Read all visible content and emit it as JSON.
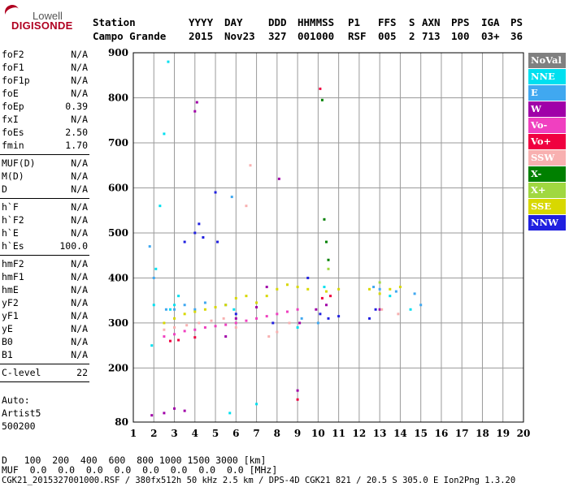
{
  "logo": {
    "top": "Lowell",
    "main": "DIGISONDE"
  },
  "header": {
    "labels": [
      "Station",
      "YYYY",
      "DAY",
      "DDD",
      "HHMMSS",
      "P1",
      "FFS",
      "S",
      "AXN",
      "PPS",
      "IGA",
      "PS"
    ],
    "values": [
      "Campo Grande",
      "2015",
      "Nov23",
      "327",
      "001000",
      "RSF",
      "005",
      "2",
      "713",
      "100",
      "03+",
      "36"
    ]
  },
  "params": {
    "group1": [
      {
        "name": "foF2",
        "value": "N/A"
      },
      {
        "name": "foF1",
        "value": "N/A"
      },
      {
        "name": "foF1p",
        "value": "N/A"
      },
      {
        "name": "foE",
        "value": "N/A"
      },
      {
        "name": "foEp",
        "value": "0.39"
      },
      {
        "name": "fxI",
        "value": "N/A"
      },
      {
        "name": "foEs",
        "value": "2.50"
      },
      {
        "name": "fmin",
        "value": "1.70"
      }
    ],
    "group2": [
      {
        "name": "MUF(D)",
        "value": "N/A"
      },
      {
        "name": "M(D)",
        "value": "N/A"
      },
      {
        "name": "D",
        "value": "N/A"
      }
    ],
    "group3": [
      {
        "name": "h`F",
        "value": "N/A"
      },
      {
        "name": "h`F2",
        "value": "N/A"
      },
      {
        "name": "h`E",
        "value": "N/A"
      },
      {
        "name": "h`Es",
        "value": "100.0"
      }
    ],
    "group4": [
      {
        "name": "hmF2",
        "value": "N/A"
      },
      {
        "name": "hmF1",
        "value": "N/A"
      },
      {
        "name": "hmE",
        "value": "N/A"
      },
      {
        "name": "yF2",
        "value": "N/A"
      },
      {
        "name": "yF1",
        "value": "N/A"
      },
      {
        "name": "yE",
        "value": "N/A"
      },
      {
        "name": "B0",
        "value": "N/A"
      },
      {
        "name": "B1",
        "value": "N/A"
      }
    ],
    "group5": [
      {
        "name": "C-level",
        "value": "22"
      }
    ]
  },
  "auto": {
    "label": "Auto:",
    "program": "Artist5",
    "version": "500200"
  },
  "legend": [
    {
      "label": "NoVal",
      "color": "#808080"
    },
    {
      "label": "NNE",
      "color": "#00e0f0"
    },
    {
      "label": "E",
      "color": "#40a8f0"
    },
    {
      "label": "W",
      "color": "#a000a8"
    },
    {
      "label": "Vo-",
      "color": "#f040c0"
    },
    {
      "label": "Vo+",
      "color": "#f00040"
    },
    {
      "label": "SSW",
      "color": "#f8b0b0"
    },
    {
      "label": "X-",
      "color": "#008000"
    },
    {
      "label": "X+",
      "color": "#a0d840"
    },
    {
      "label": "SSE",
      "color": "#d8d800"
    },
    {
      "label": "NNW",
      "color": "#2020e0"
    }
  ],
  "chart_data": {
    "type": "scatter",
    "title": "",
    "xlabel": "",
    "ylabel": "",
    "xlim": [
      1,
      20
    ],
    "ylim": [
      80,
      900
    ],
    "x_ticks": [
      "1",
      "2",
      "3",
      "4",
      "5",
      "6",
      "7",
      "8",
      "9",
      "10",
      "11",
      "12",
      "13",
      "14",
      "15",
      "16",
      "17",
      "18",
      "19",
      "20"
    ],
    "y_ticks": [
      "80",
      "200",
      "300",
      "400",
      "500",
      "600",
      "700",
      "800",
      "900"
    ],
    "grid": true,
    "legend_placement": "right",
    "series": [
      {
        "name": "NNE",
        "points": [
          [
            1.9,
            250
          ],
          [
            2.0,
            340
          ],
          [
            2.1,
            420
          ],
          [
            2.3,
            560
          ],
          [
            2.5,
            720
          ],
          [
            2.7,
            880
          ],
          [
            2.8,
            330
          ],
          [
            3.0,
            340
          ],
          [
            3.2,
            360
          ],
          [
            5.7,
            100
          ],
          [
            5.9,
            330
          ],
          [
            7.0,
            120
          ],
          [
            9.0,
            290
          ],
          [
            10.3,
            380
          ],
          [
            13.5,
            360
          ],
          [
            14.5,
            330
          ]
        ]
      },
      {
        "name": "E",
        "points": [
          [
            1.8,
            470
          ],
          [
            2.0,
            400
          ],
          [
            2.6,
            330
          ],
          [
            3.0,
            330
          ],
          [
            3.5,
            340
          ],
          [
            4.0,
            330
          ],
          [
            4.5,
            345
          ],
          [
            5.5,
            340
          ],
          [
            5.8,
            580
          ],
          [
            9.2,
            310
          ],
          [
            10.0,
            300
          ],
          [
            12.7,
            380
          ],
          [
            13.0,
            375
          ],
          [
            13.8,
            370
          ],
          [
            14.7,
            365
          ],
          [
            15.0,
            340
          ]
        ]
      },
      {
        "name": "W",
        "points": [
          [
            1.9,
            95
          ],
          [
            2.5,
            100
          ],
          [
            3.0,
            110
          ],
          [
            3.5,
            105
          ],
          [
            4.0,
            770
          ],
          [
            4.1,
            790
          ],
          [
            5.5,
            270
          ],
          [
            6.0,
            310
          ],
          [
            7.0,
            335
          ],
          [
            7.5,
            380
          ],
          [
            8.1,
            620
          ],
          [
            9.0,
            150
          ],
          [
            9.1,
            300
          ],
          [
            9.9,
            330
          ],
          [
            10.4,
            340
          ],
          [
            13.0,
            330
          ]
        ]
      },
      {
        "name": "Vo-",
        "points": [
          [
            2.5,
            270
          ],
          [
            3.0,
            275
          ],
          [
            3.5,
            282
          ],
          [
            4.0,
            285
          ],
          [
            4.5,
            290
          ],
          [
            5.0,
            293
          ],
          [
            5.5,
            296
          ],
          [
            6.0,
            300
          ],
          [
            6.5,
            305
          ],
          [
            7.0,
            310
          ],
          [
            7.5,
            315
          ],
          [
            8.0,
            320
          ],
          [
            8.5,
            325
          ],
          [
            9.0,
            330
          ]
        ]
      },
      {
        "name": "Vo+",
        "points": [
          [
            2.8,
            260
          ],
          [
            3.2,
            262
          ],
          [
            4.0,
            268
          ],
          [
            9.0,
            130
          ],
          [
            10.1,
            820
          ],
          [
            10.2,
            355
          ],
          [
            10.6,
            360
          ]
        ]
      },
      {
        "name": "SSW",
        "points": [
          [
            2.5,
            285
          ],
          [
            3.0,
            290
          ],
          [
            3.6,
            295
          ],
          [
            4.2,
            300
          ],
          [
            4.8,
            305
          ],
          [
            5.4,
            310
          ],
          [
            6.0,
            290
          ],
          [
            6.5,
            560
          ],
          [
            6.7,
            650
          ],
          [
            7.6,
            270
          ],
          [
            8.0,
            280
          ],
          [
            8.6,
            300
          ],
          [
            13.1,
            330
          ],
          [
            13.9,
            320
          ]
        ]
      },
      {
        "name": "X-",
        "points": [
          [
            10.2,
            795
          ],
          [
            10.3,
            530
          ],
          [
            10.4,
            480
          ],
          [
            10.5,
            440
          ]
        ]
      },
      {
        "name": "X+",
        "points": [
          [
            10.5,
            420
          ],
          [
            13.0,
            390
          ]
        ]
      },
      {
        "name": "SSE",
        "points": [
          [
            2.5,
            300
          ],
          [
            3.0,
            310
          ],
          [
            3.5,
            320
          ],
          [
            4.0,
            325
          ],
          [
            4.5,
            330
          ],
          [
            5.0,
            335
          ],
          [
            5.5,
            340
          ],
          [
            6.0,
            355
          ],
          [
            6.5,
            360
          ],
          [
            7.0,
            345
          ],
          [
            7.5,
            360
          ],
          [
            8.0,
            375
          ],
          [
            8.5,
            385
          ],
          [
            9.0,
            380
          ],
          [
            9.5,
            375
          ],
          [
            10.4,
            370
          ],
          [
            11.0,
            375
          ],
          [
            12.5,
            375
          ],
          [
            13.0,
            365
          ],
          [
            13.5,
            375
          ],
          [
            14.0,
            380
          ]
        ]
      },
      {
        "name": "NNW",
        "points": [
          [
            3.5,
            480
          ],
          [
            4.0,
            500
          ],
          [
            4.2,
            520
          ],
          [
            4.4,
            490
          ],
          [
            5.0,
            590
          ],
          [
            5.1,
            480
          ],
          [
            6.0,
            320
          ],
          [
            7.8,
            300
          ],
          [
            9.5,
            400
          ],
          [
            10.1,
            320
          ],
          [
            10.5,
            310
          ],
          [
            11.0,
            315
          ],
          [
            12.5,
            310
          ],
          [
            12.8,
            330
          ]
        ]
      }
    ]
  },
  "bottom": {
    "d_row": "D   100  200  400  600  800 1000 1500 3000 [km]",
    "muf_row": "MUF  0.0  0.0  0.0  0.0  0.0  0.0  0.0  0.0 [MHz]",
    "info": "CGK21_2015327001000.RSF / 380fx512h 50 kHz 2.5 km / DPS-4D CGK21 821 / 20.5 S 305.0 E Ion2Png 1.3.20"
  }
}
